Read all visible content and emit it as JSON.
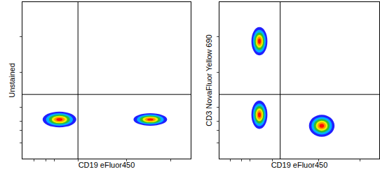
{
  "chart_data": [
    {
      "type": "density",
      "x_label": "CD19 eFluor450",
      "y_label": "Unstained",
      "xlim": [
        0,
        100
      ],
      "ylim": [
        0,
        100
      ],
      "xticks": [
        7,
        14,
        19,
        33,
        62,
        88
      ],
      "yticks": [
        10,
        18,
        24,
        33,
        55,
        78
      ],
      "tick_labels": false,
      "gate": {
        "x": 33,
        "y": 41
      },
      "populations": [
        {
          "x": 22,
          "y": 25,
          "x_spread": 10,
          "y_spread": 5
        },
        {
          "x": 76,
          "y": 25,
          "x_spread": 10,
          "y_spread": 4
        }
      ]
    },
    {
      "type": "density",
      "x_label": "CD19 eFluor450",
      "y_label": "CD3 NovaFluor Yellow 690",
      "xlim": [
        0,
        100
      ],
      "ylim": [
        0,
        100
      ],
      "xticks": [
        7,
        14,
        19,
        33,
        62,
        88
      ],
      "yticks": [
        10,
        18,
        24,
        33,
        55,
        78
      ],
      "tick_labels": false,
      "gate": {
        "x": 38,
        "y": 41
      },
      "populations": [
        {
          "x": 25,
          "y": 75,
          "x_spread": 5,
          "y_spread": 9
        },
        {
          "x": 25,
          "y": 28,
          "x_spread": 5,
          "y_spread": 9
        },
        {
          "x": 64,
          "y": 21,
          "x_spread": 8,
          "y_spread": 7
        }
      ]
    }
  ]
}
